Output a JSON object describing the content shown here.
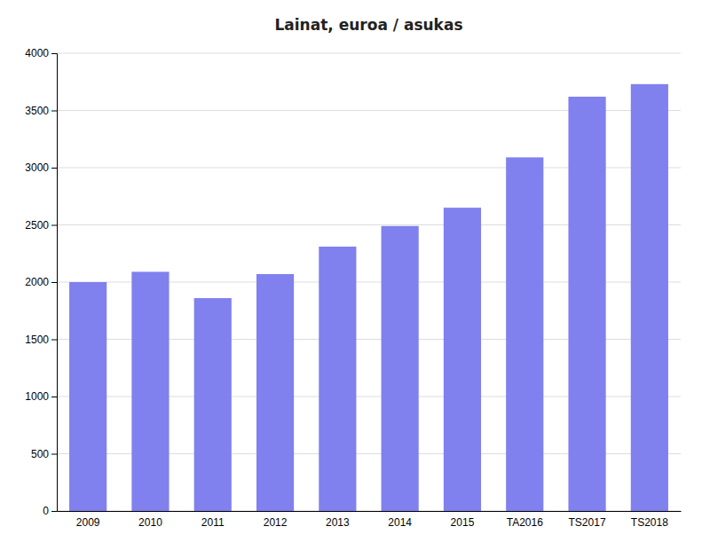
{
  "chart_data": {
    "type": "bar",
    "title": "Lainat, euroa / asukas",
    "categories": [
      "2009",
      "2010",
      "2011",
      "2012",
      "2013",
      "2014",
      "2015",
      "TA2016",
      "TS2017",
      "TS2018"
    ],
    "values": [
      2000,
      2090,
      1860,
      2070,
      2310,
      2490,
      2650,
      3090,
      3620,
      3730
    ],
    "color": "#8080ee",
    "ylim": [
      0,
      4000
    ],
    "yticks": [
      0,
      500,
      1000,
      1500,
      2000,
      2500,
      3000,
      3500,
      4000
    ],
    "grid": true
  }
}
